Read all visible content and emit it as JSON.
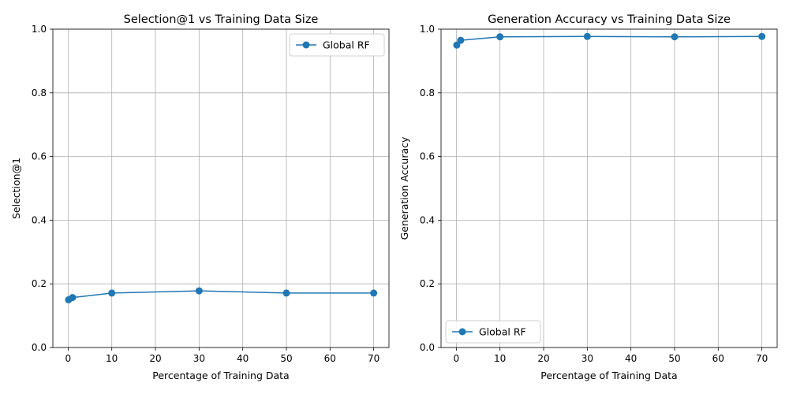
{
  "chart_data": [
    {
      "type": "line",
      "title": "Selection@1 vs Training Data Size",
      "xlabel": "Percentage of Training Data",
      "ylabel": "Selection@1",
      "xlim": [
        -3.5,
        73.5
      ],
      "ylim": [
        0,
        1.0
      ],
      "xticks": [
        0,
        10,
        20,
        30,
        40,
        50,
        60,
        70
      ],
      "yticks": [
        0.0,
        0.2,
        0.4,
        0.6,
        0.8,
        1.0
      ],
      "grid": true,
      "legend_position": "upper-right",
      "series": [
        {
          "name": "Global RF",
          "color": "#1f77b4",
          "marker": "circle",
          "x": [
            0.1,
            1,
            10,
            30,
            50,
            70
          ],
          "y": [
            0.15,
            0.157,
            0.171,
            0.178,
            0.171,
            0.171
          ]
        }
      ]
    },
    {
      "type": "line",
      "title": "Generation Accuracy vs Training Data Size",
      "xlabel": "Percentage of Training Data",
      "ylabel": "Generation Accuracy",
      "xlim": [
        -3.5,
        73.5
      ],
      "ylim": [
        0,
        1.0
      ],
      "xticks": [
        0,
        10,
        20,
        30,
        40,
        50,
        60,
        70
      ],
      "yticks": [
        0.0,
        0.2,
        0.4,
        0.6,
        0.8,
        1.0
      ],
      "grid": true,
      "legend_position": "lower-left",
      "series": [
        {
          "name": "Global RF",
          "color": "#1f77b4",
          "marker": "circle",
          "x": [
            0.1,
            1,
            10,
            30,
            50,
            70
          ],
          "y": [
            0.95,
            0.965,
            0.976,
            0.977,
            0.976,
            0.977
          ]
        }
      ]
    }
  ]
}
